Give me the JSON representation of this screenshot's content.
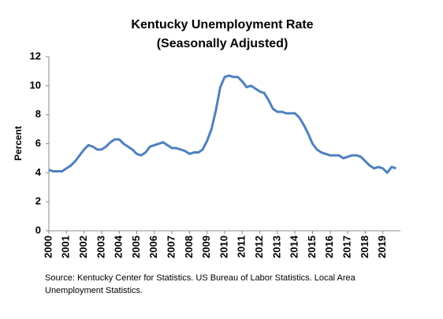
{
  "chart_data": {
    "type": "line",
    "title": "Kentucky Unemployment Rate",
    "subtitle": "(Seasonally Adjusted)",
    "y_label": "Percent",
    "source": "Source: Kentucky Center for Statistics. US Bureau of Labor Statistics. Local Area Unemployment Statistics.",
    "x": [
      2000,
      2000.25,
      2000.5,
      2000.75,
      2001,
      2001.25,
      2001.5,
      2001.75,
      2002,
      2002.25,
      2002.5,
      2002.75,
      2003,
      2003.25,
      2003.5,
      2003.75,
      2004,
      2004.25,
      2004.5,
      2004.75,
      2005,
      2005.25,
      2005.5,
      2005.75,
      2006,
      2006.25,
      2006.5,
      2006.75,
      2007,
      2007.25,
      2007.5,
      2007.75,
      2008,
      2008.25,
      2008.5,
      2008.75,
      2009,
      2009.25,
      2009.5,
      2009.75,
      2010,
      2010.25,
      2010.5,
      2010.75,
      2011,
      2011.25,
      2011.5,
      2011.75,
      2012,
      2012.25,
      2012.5,
      2012.75,
      2013,
      2013.25,
      2013.5,
      2013.75,
      2014,
      2014.25,
      2014.5,
      2014.75,
      2015,
      2015.25,
      2015.5,
      2015.75,
      2016,
      2016.25,
      2016.5,
      2016.75,
      2017,
      2017.25,
      2017.5,
      2017.75,
      2018,
      2018.25,
      2018.5,
      2018.75,
      2019,
      2019.25,
      2019.5,
      2019.75
    ],
    "series": [
      {
        "name": "Kentucky",
        "color": "#4f81bd",
        "values": [
          4.2,
          4.1,
          4.1,
          4.1,
          4.3,
          4.5,
          4.8,
          5.2,
          5.6,
          5.9,
          5.8,
          5.6,
          5.6,
          5.8,
          6.1,
          6.3,
          6.3,
          6.0,
          5.8,
          5.6,
          5.3,
          5.2,
          5.4,
          5.8,
          5.9,
          6.0,
          6.1,
          5.9,
          5.7,
          5.7,
          5.6,
          5.5,
          5.3,
          5.4,
          5.4,
          5.6,
          6.2,
          7.0,
          8.3,
          9.9,
          10.6,
          10.7,
          10.6,
          10.6,
          10.3,
          9.9,
          10.0,
          9.8,
          9.6,
          9.5,
          9.0,
          8.4,
          8.2,
          8.2,
          8.1,
          8.1,
          8.1,
          7.8,
          7.3,
          6.7,
          6.0,
          5.6,
          5.4,
          5.3,
          5.2,
          5.2,
          5.2,
          5.0,
          5.1,
          5.2,
          5.2,
          5.1,
          4.8,
          4.5,
          4.3,
          4.4,
          4.3,
          4.0,
          4.4,
          4.3
        ]
      }
    ],
    "xlim": [
      2000,
      2020
    ],
    "xticks": [
      2000,
      2001,
      2002,
      2003,
      2004,
      2005,
      2006,
      2007,
      2008,
      2009,
      2010,
      2011,
      2012,
      2013,
      2014,
      2015,
      2016,
      2017,
      2018,
      2019
    ],
    "ylim": [
      0,
      12
    ],
    "yticks": [
      0,
      2,
      4,
      6,
      8,
      10,
      12
    ],
    "grid": false
  }
}
